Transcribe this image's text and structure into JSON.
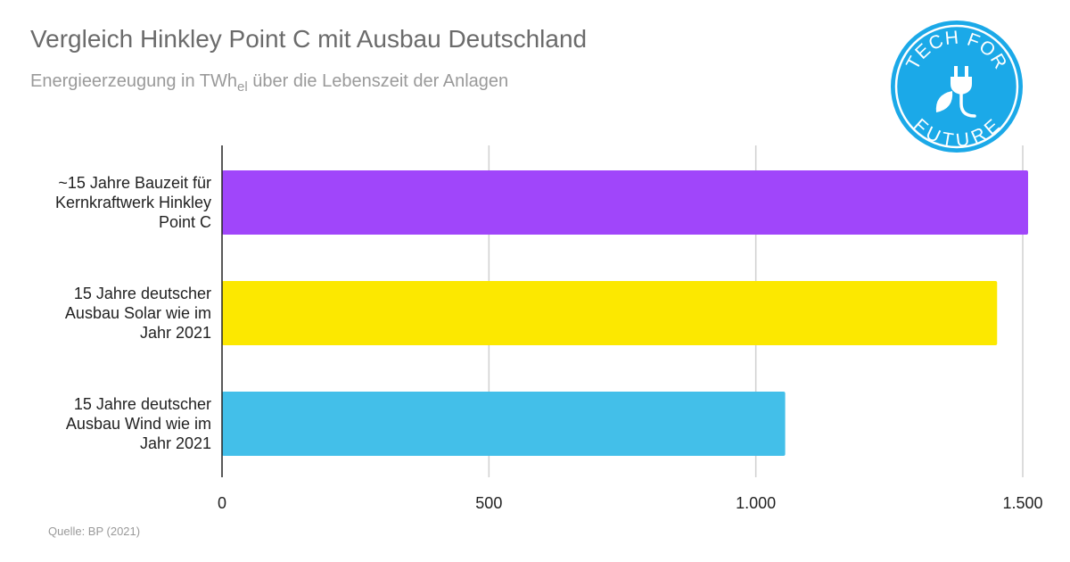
{
  "title": "Vergleich Hinkley Point C mit Ausbau Deutschland",
  "subtitle": {
    "prefix": "Energieerzeugung in TWh",
    "subscript": "el",
    "suffix": " über die Lebenszeit der Anlagen"
  },
  "source": "Quelle: BP (2021)",
  "badge": {
    "top_text": "TECH FOR",
    "bottom_text": "FUTURE",
    "icon": "plug-leaf-icon",
    "color": "#1ba9e8"
  },
  "chart_data": {
    "type": "bar",
    "orientation": "horizontal",
    "categories": [
      [
        "~15 Jahre Bauzeit für",
        "Kernkraftwerk Hinkley",
        "Point C"
      ],
      [
        "15 Jahre deutscher",
        "Ausbau Solar wie im",
        "Jahr 2021"
      ],
      [
        "15 Jahre deutscher",
        "Ausbau Wind wie im",
        "Jahr 2021"
      ]
    ],
    "values": [
      1510,
      1452,
      1055
    ],
    "colors": [
      "#a046fa",
      "#fce800",
      "#43bfe9"
    ],
    "xlim": [
      0,
      1500
    ],
    "xticks": [
      0,
      500,
      1000,
      1500
    ],
    "xtick_labels": [
      "0",
      "500",
      "1.000",
      "1.500"
    ],
    "grid": true
  }
}
